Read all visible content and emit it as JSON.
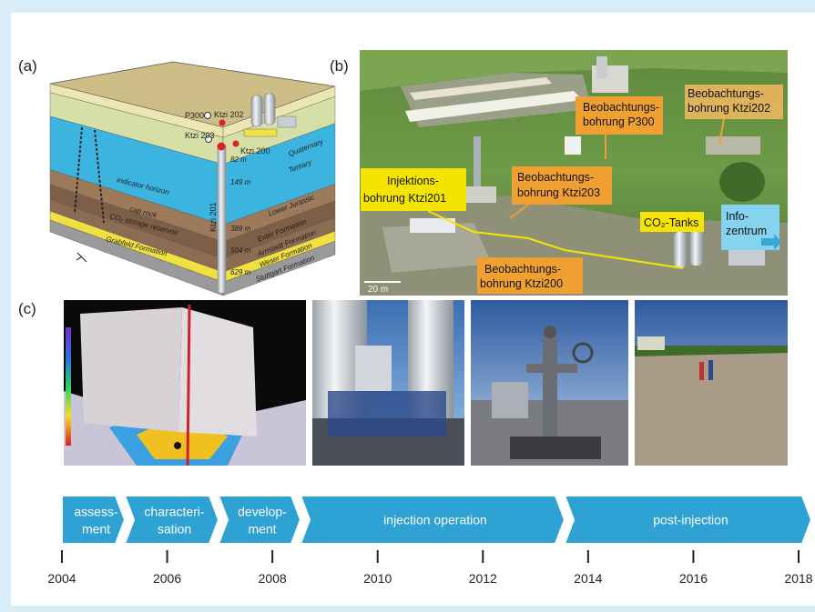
{
  "panel_labels": [
    "(a)",
    "(b)",
    "(c)"
  ],
  "panel_a": {
    "wells": [
      "P300",
      "Ktzi 202",
      "Ktzi 203",
      "Ktzi 200",
      "Ktzi 201"
    ],
    "formations": [
      "Quaternary",
      "Tertiary",
      "Lower Jurassic",
      "Exter Formation",
      "Arnstadt Formation",
      "Weser Formation",
      "Stuttgart Formation",
      "Grabfeld Formation"
    ],
    "horizons": [
      "indicator horizon",
      "cap rock",
      "CO₂ storage reservoir"
    ],
    "depths": [
      "82 m",
      "149 m",
      "389 m",
      "504 m",
      "629 m"
    ]
  },
  "panel_b": {
    "labels": [
      {
        "lines": [
          "Beobachtungs-",
          "bohrung P300"
        ]
      },
      {
        "lines": [
          "Beobachtungs-",
          "bohrung Ktzi202"
        ]
      },
      {
        "lines": [
          "Injektions-",
          "bohrung Ktzi201"
        ]
      },
      {
        "lines": [
          "Beobachtungs-",
          "bohrung Ktzi203"
        ]
      },
      {
        "lines": [
          "CO₂-Tanks"
        ]
      },
      {
        "lines": [
          "Info-",
          "zentrum"
        ]
      },
      {
        "lines": [
          "Beobachtungs-",
          "bohrung Ktzi200"
        ]
      }
    ],
    "scale": "20 m"
  },
  "timeline": {
    "phases": [
      [
        "assess-",
        "ment"
      ],
      [
        "characteri-",
        "sation"
      ],
      [
        "develop-",
        "ment"
      ],
      [
        "injection operation"
      ],
      [
        "post-injection"
      ]
    ],
    "years": [
      2004,
      2006,
      2008,
      2010,
      2012,
      2014,
      2016,
      2018
    ]
  }
}
